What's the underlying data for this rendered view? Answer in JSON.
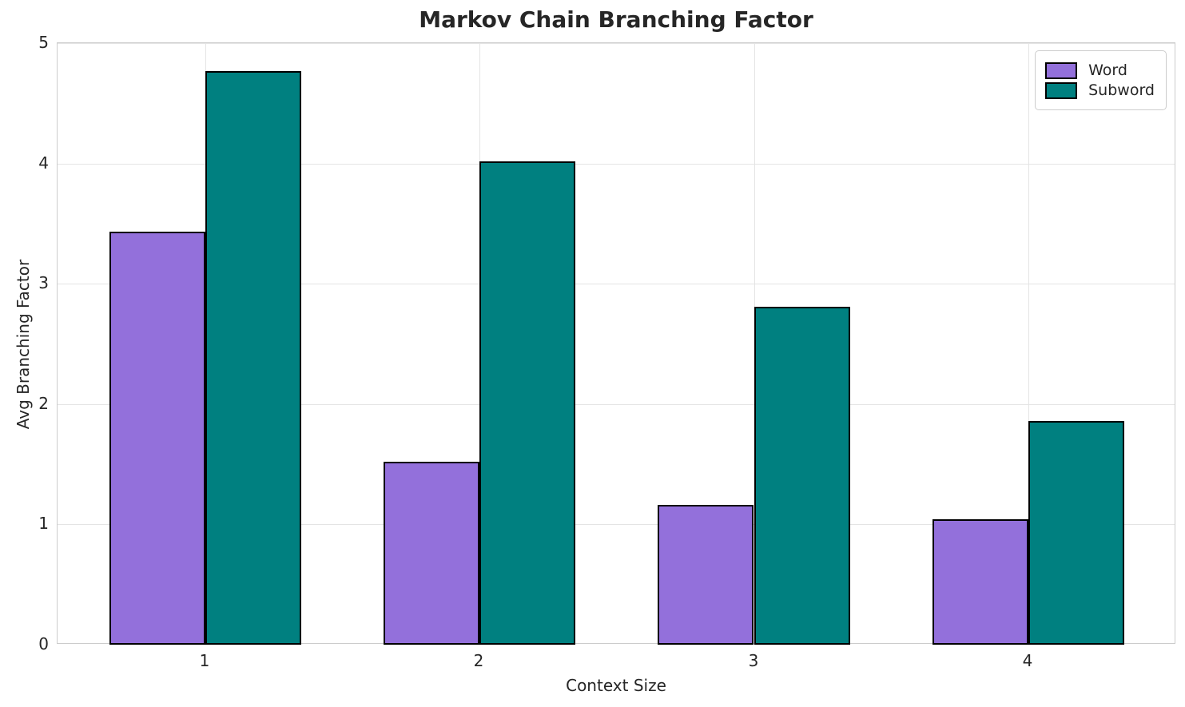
{
  "chart_data": {
    "type": "bar",
    "title": "Markov Chain Branching Factor",
    "xlabel": "Context Size",
    "ylabel": "Avg Branching Factor",
    "categories": [
      "1",
      "2",
      "3",
      "4"
    ],
    "series": [
      {
        "name": "Word",
        "color": "#9370DB",
        "values": [
          3.43,
          1.52,
          1.16,
          1.04
        ]
      },
      {
        "name": "Subword",
        "color": "#008080",
        "values": [
          4.77,
          4.02,
          2.81,
          1.86
        ]
      }
    ],
    "ylim": [
      0,
      5
    ],
    "yticks": [
      "0",
      "1",
      "2",
      "3",
      "4",
      "5"
    ],
    "bar_width_fraction": 0.35,
    "bar_edge_color": "#000000",
    "grid": true,
    "legend_position": "upper-right"
  },
  "colors": {
    "background": "#ffffff",
    "grid": "#e4e4e4",
    "spine": "#cccccc",
    "text": "#262626"
  }
}
